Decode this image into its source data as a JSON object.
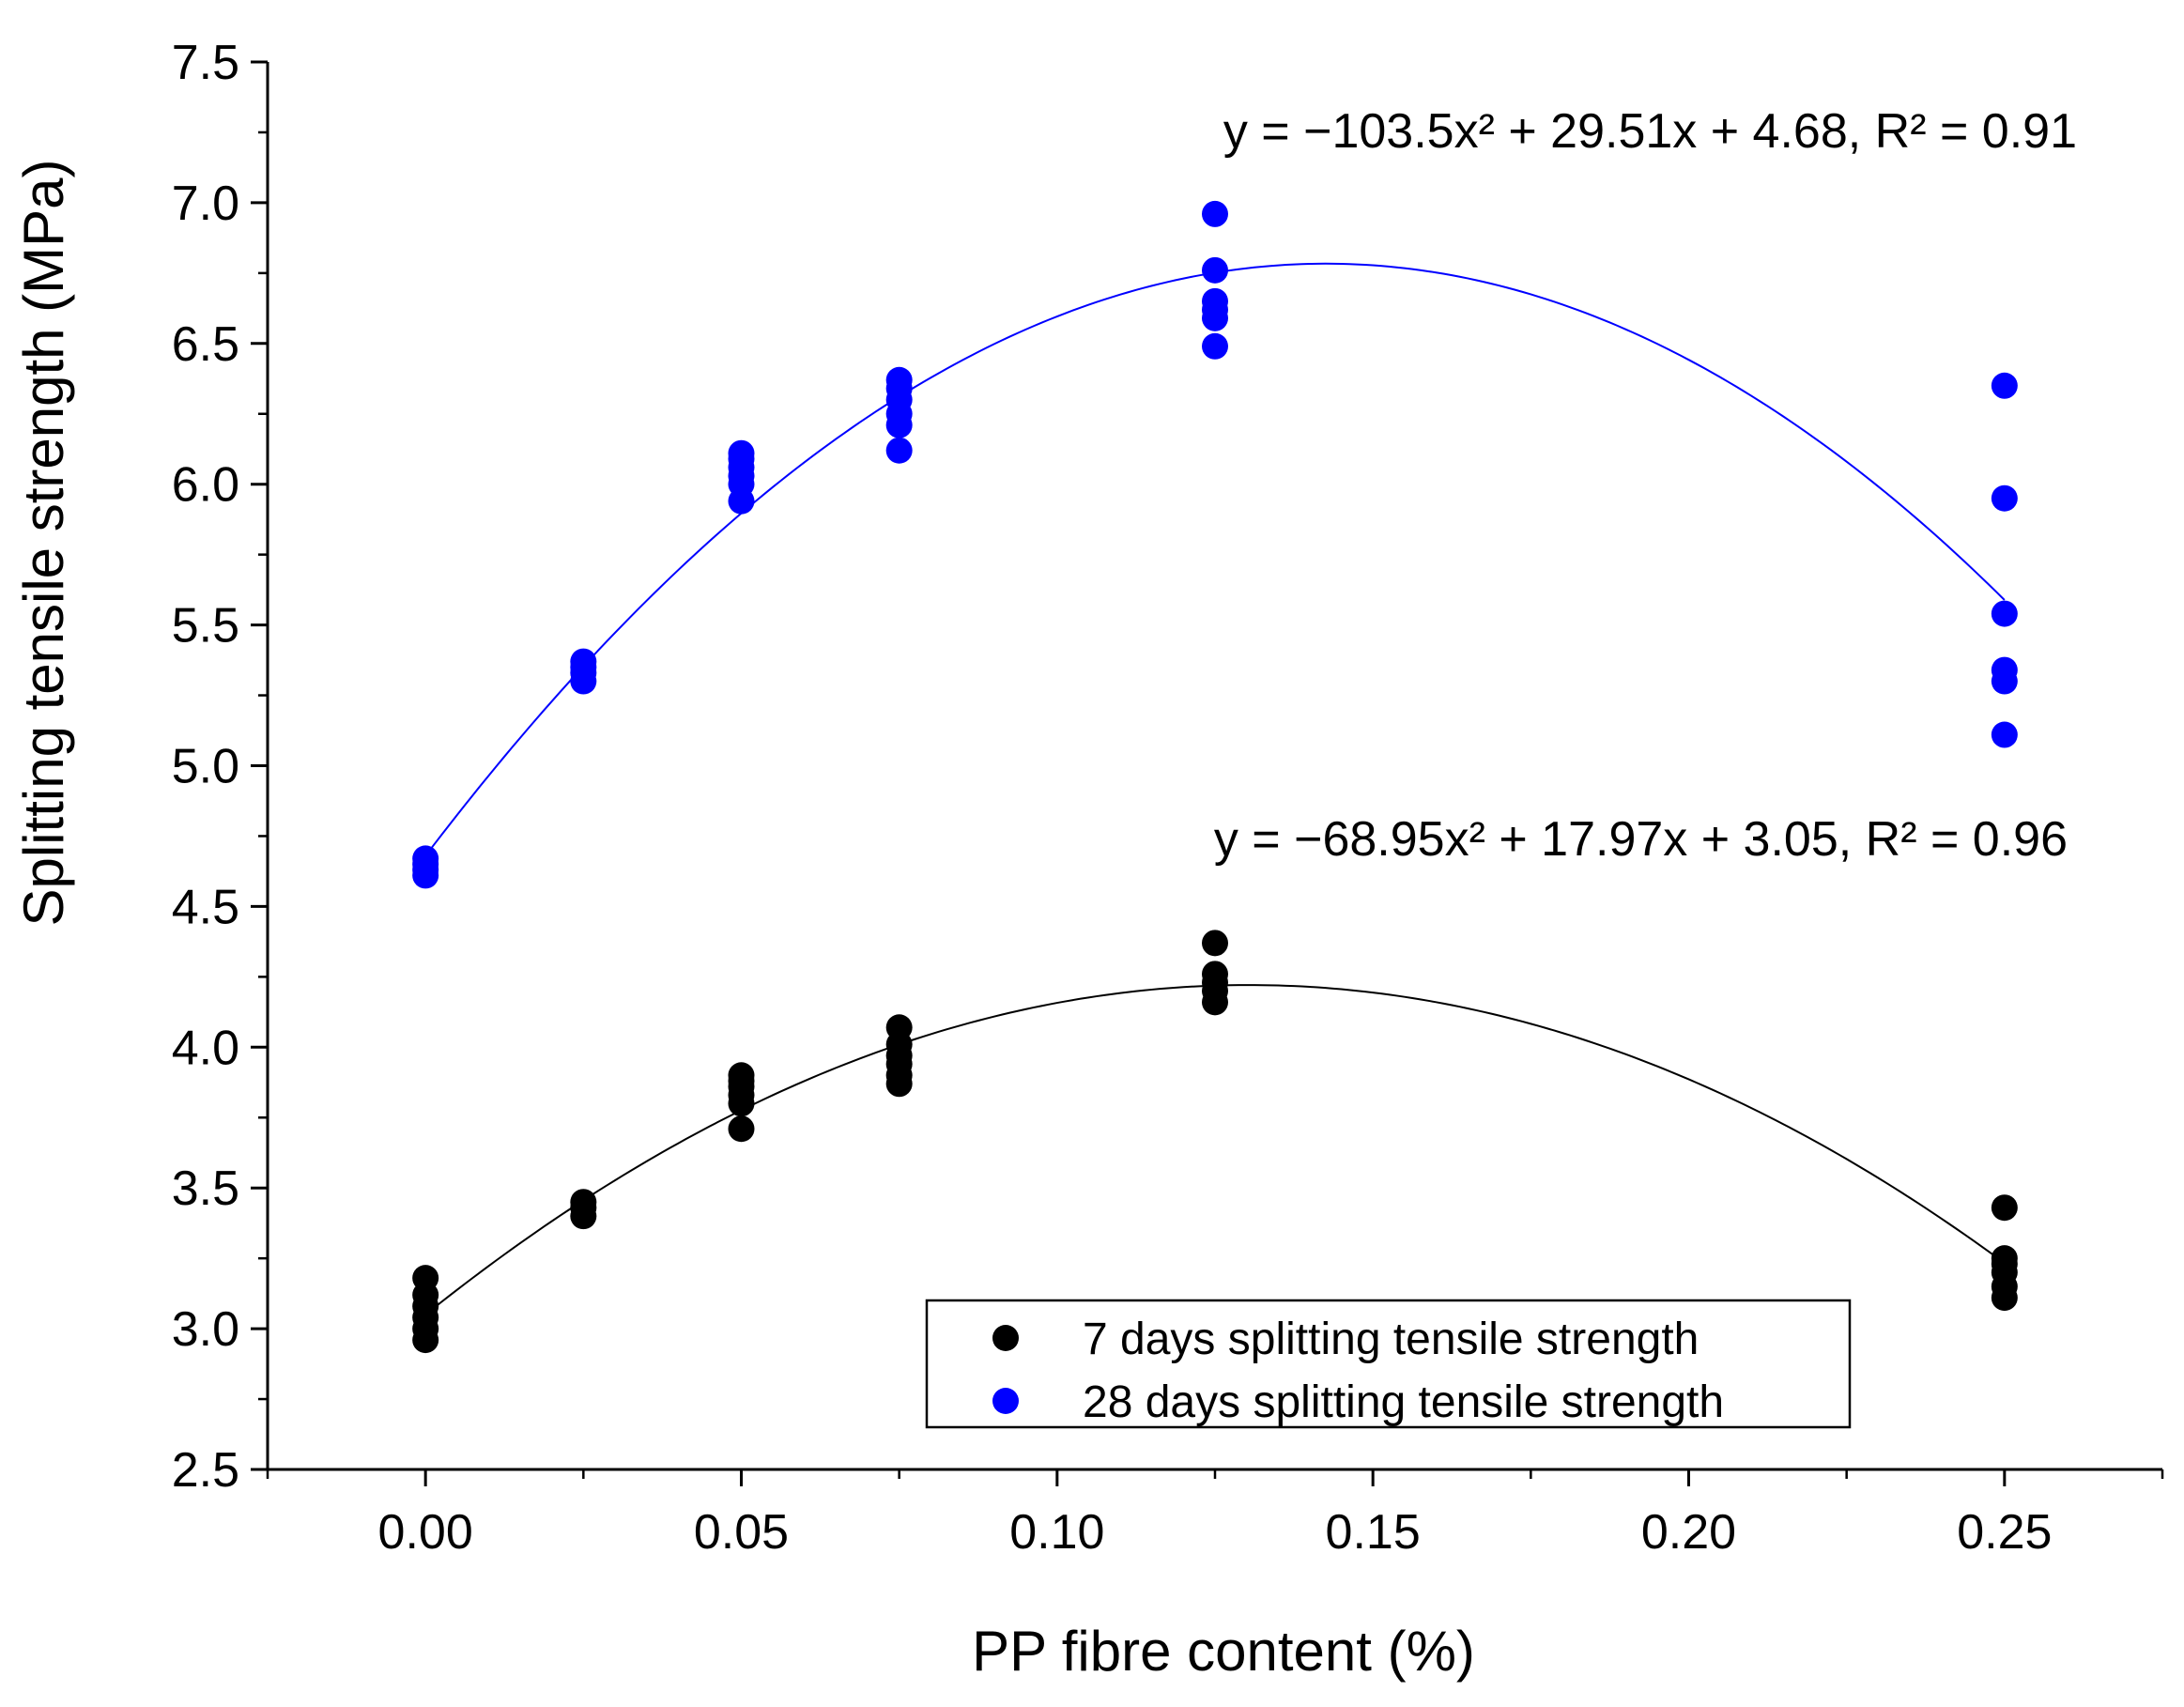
{
  "chart_data": {
    "type": "scatter",
    "title": "",
    "xlabel": "PP fibre content (%)",
    "ylabel": "Splitting tensile strength (MPa)",
    "xlim": [
      -0.025,
      0.275
    ],
    "ylim": [
      2.5,
      7.5
    ],
    "x_ticks": [
      "0.00",
      "0.05",
      "0.10",
      "0.15",
      "0.20",
      "0.25"
    ],
    "x_tick_values": [
      0.0,
      0.05,
      0.1,
      0.15,
      0.2,
      0.25
    ],
    "y_ticks": [
      "2.5",
      "3.0",
      "3.5",
      "4.0",
      "4.5",
      "5.0",
      "5.5",
      "6.0",
      "6.5",
      "7.0",
      "7.5"
    ],
    "y_tick_values": [
      2.5,
      3.0,
      3.5,
      4.0,
      4.5,
      5.0,
      5.5,
      6.0,
      6.5,
      7.0,
      7.5
    ],
    "legend_position": "bottom-right",
    "series": [
      {
        "name": "7 days splitting tensile strength",
        "color": "#000000",
        "points": [
          [
            0.0,
            2.96
          ],
          [
            0.0,
            3.0
          ],
          [
            0.0,
            3.04
          ],
          [
            0.0,
            3.08
          ],
          [
            0.0,
            3.12
          ],
          [
            0.0,
            3.18
          ],
          [
            0.025,
            3.4
          ],
          [
            0.025,
            3.43
          ],
          [
            0.025,
            3.45
          ],
          [
            0.05,
            3.71
          ],
          [
            0.05,
            3.8
          ],
          [
            0.05,
            3.83
          ],
          [
            0.05,
            3.86
          ],
          [
            0.05,
            3.88
          ],
          [
            0.05,
            3.9
          ],
          [
            0.075,
            3.87
          ],
          [
            0.075,
            3.9
          ],
          [
            0.075,
            3.94
          ],
          [
            0.075,
            3.97
          ],
          [
            0.075,
            4.01
          ],
          [
            0.075,
            4.07
          ],
          [
            0.125,
            4.16
          ],
          [
            0.125,
            4.2
          ],
          [
            0.125,
            4.23
          ],
          [
            0.125,
            4.26
          ],
          [
            0.125,
            4.37
          ],
          [
            0.25,
            3.11
          ],
          [
            0.25,
            3.15
          ],
          [
            0.25,
            3.2
          ],
          [
            0.25,
            3.23
          ],
          [
            0.25,
            3.25
          ],
          [
            0.25,
            3.43
          ]
        ],
        "fit": {
          "a": -68.95,
          "b": 17.97,
          "c": 3.05,
          "label": "y = −68.95x² + 17.97x + 3.05, R² = 0.96"
        }
      },
      {
        "name": "28 days splitting tensile strength",
        "color": "#0000ff",
        "points": [
          [
            0.0,
            4.61
          ],
          [
            0.0,
            4.63
          ],
          [
            0.0,
            4.65
          ],
          [
            0.0,
            4.67
          ],
          [
            0.025,
            5.3
          ],
          [
            0.025,
            5.33
          ],
          [
            0.025,
            5.35
          ],
          [
            0.025,
            5.37
          ],
          [
            0.05,
            5.94
          ],
          [
            0.05,
            6.0
          ],
          [
            0.05,
            6.03
          ],
          [
            0.05,
            6.06
          ],
          [
            0.05,
            6.09
          ],
          [
            0.05,
            6.11
          ],
          [
            0.075,
            6.12
          ],
          [
            0.075,
            6.21
          ],
          [
            0.075,
            6.25
          ],
          [
            0.075,
            6.3
          ],
          [
            0.075,
            6.34
          ],
          [
            0.075,
            6.37
          ],
          [
            0.125,
            6.49
          ],
          [
            0.125,
            6.59
          ],
          [
            0.125,
            6.62
          ],
          [
            0.125,
            6.65
          ],
          [
            0.125,
            6.76
          ],
          [
            0.125,
            6.96
          ],
          [
            0.25,
            5.11
          ],
          [
            0.25,
            5.3
          ],
          [
            0.25,
            5.34
          ],
          [
            0.25,
            5.54
          ],
          [
            0.25,
            5.95
          ],
          [
            0.25,
            6.35
          ]
        ],
        "fit": {
          "a": -103.5,
          "b": 29.51,
          "c": 4.68,
          "label": "y = −103.5x² + 29.51x + 4.68, R² = 0.91"
        }
      }
    ]
  }
}
